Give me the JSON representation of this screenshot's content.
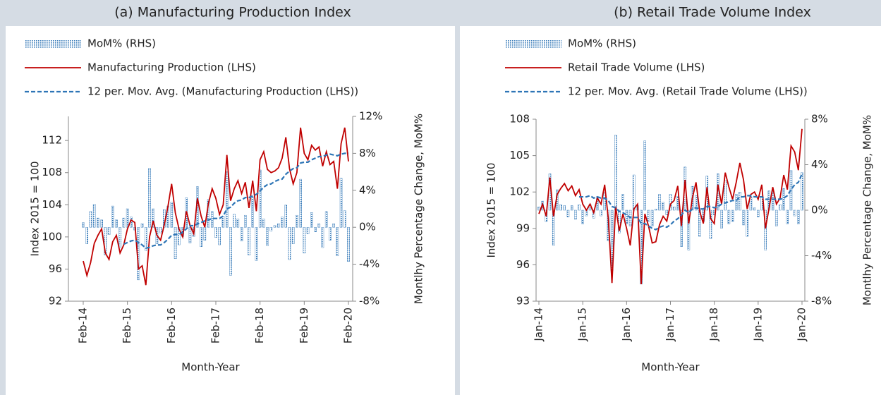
{
  "chart_data": [
    {
      "type": "combo",
      "title": "(a)  Manufacturing Production Index",
      "xlabel": "Month-Year",
      "ylabel": "Index 2015 = 100",
      "y2label": "Montlhy Percentage Change, MoM%",
      "categories": [
        "Feb-14",
        null,
        null,
        null,
        null,
        null,
        null,
        null,
        null,
        null,
        null,
        null,
        "Feb-15",
        null,
        null,
        null,
        null,
        null,
        null,
        null,
        null,
        null,
        null,
        null,
        "Feb-16",
        null,
        null,
        null,
        null,
        null,
        null,
        null,
        null,
        null,
        null,
        null,
        "Feb-17",
        null,
        null,
        null,
        null,
        null,
        null,
        null,
        null,
        null,
        null,
        null,
        "Feb-18",
        null,
        null,
        null,
        null,
        null,
        null,
        null,
        null,
        null,
        null,
        null,
        "Feb-19",
        null,
        null,
        null,
        null,
        null,
        null,
        null,
        null,
        null,
        null,
        null,
        "Feb-20"
      ],
      "ylim": [
        92,
        115
      ],
      "yticks": [
        92,
        96,
        100,
        104,
        108,
        112
      ],
      "y2lim": [
        -8,
        12
      ],
      "y2ticks": [
        {
          "value": -8,
          "label": "-8%"
        },
        {
          "value": -4,
          "label": "-4%"
        },
        {
          "value": 0,
          "label": "0%"
        },
        {
          "value": 4,
          "label": "4%"
        },
        {
          "value": 8,
          "label": "8%"
        },
        {
          "value": 12,
          "label": "12%"
        }
      ],
      "series": [
        {
          "name": "MoM% (RHS)",
          "type": "bar",
          "axis": "y2",
          "color": "#2e75b6",
          "values": [
            0.5,
            -1.8,
            1.7,
            2.5,
            1.0,
            0.8,
            -3.0,
            -0.8,
            2.3,
            0.8,
            -2.2,
            1.0,
            2.0,
            1.1,
            -0.3,
            -5.7,
            0.4,
            -2.5,
            6.4,
            2.0,
            -1.8,
            -0.6,
            1.9,
            2.3,
            2.7,
            -3.4,
            -1.9,
            -1.0,
            3.2,
            -1.7,
            -1.0,
            4.4,
            -2.1,
            -1.4,
            3.0,
            1.7,
            -1.1,
            -1.9,
            1.2,
            6.0,
            -5.2,
            1.4,
            0.9,
            -1.5,
            1.3,
            -3.0,
            3.3,
            -3.6,
            6.2,
            0.9,
            -2.0,
            -0.4,
            0.2,
            0.4,
            1.1,
            2.4,
            -3.5,
            -1.8,
            1.3,
            5.2,
            -2.8,
            -0.7,
            1.6,
            -0.5,
            0.4,
            -2.2,
            1.7,
            -1.4,
            0.4,
            -3.1,
            5.3,
            1.8,
            -3.7
          ]
        },
        {
          "name": "Manufacturing Production (LHS)",
          "type": "line",
          "axis": "y",
          "color": "#c00000",
          "values": [
            97.0,
            95.2,
            96.8,
            99.2,
            100.2,
            101.0,
            98.0,
            97.2,
            99.4,
            100.2,
            98.0,
            99.0,
            101.0,
            102.1,
            101.8,
            96.0,
            96.4,
            94.0,
            100.0,
            102.0,
            100.2,
            99.6,
            101.5,
            103.8,
            106.6,
            103.0,
            101.0,
            100.0,
            103.2,
            101.4,
            100.4,
            104.8,
            102.6,
            101.2,
            104.2,
            106.0,
            104.8,
            102.8,
            104.0,
            110.2,
            104.5,
            106.0,
            107.0,
            105.4,
            106.8,
            103.6,
            107.0,
            103.2,
            109.6,
            110.6,
            108.4,
            108.0,
            108.2,
            108.6,
            109.8,
            112.4,
            108.5,
            106.6,
            108.0,
            113.6,
            110.4,
            109.6,
            111.4,
            110.8,
            111.2,
            108.8,
            110.6,
            109.0,
            109.4,
            106.0,
            111.6,
            113.6,
            109.4
          ]
        },
        {
          "name": "12 per. Mov. Avg. (Manufacturing Production (LHS))",
          "type": "line",
          "dashed": true,
          "axis": "y",
          "color": "#2e75b6",
          "values": [
            null,
            null,
            null,
            null,
            null,
            null,
            null,
            null,
            null,
            null,
            null,
            99.1,
            99.3,
            99.5,
            99.6,
            99.3,
            99.0,
            98.6,
            98.7,
            98.9,
            99.0,
            99.0,
            99.3,
            99.7,
            100.2,
            100.3,
            100.3,
            100.6,
            101.0,
            101.4,
            101.4,
            101.6,
            101.8,
            102.0,
            102.1,
            102.3,
            102.3,
            102.3,
            102.6,
            103.5,
            103.7,
            104.2,
            104.5,
            104.6,
            104.9,
            104.9,
            105.1,
            105.3,
            105.7,
            106.2,
            106.5,
            106.6,
            106.9,
            107.1,
            107.2,
            107.8,
            108.2,
            108.5,
            108.6,
            109.2,
            109.3,
            109.3,
            109.6,
            109.8,
            110.0,
            110.0,
            110.2,
            110.3,
            110.2,
            110.1,
            110.3,
            110.4,
            110.4
          ]
        }
      ]
    },
    {
      "type": "combo",
      "title": "(b)  Retail Trade Volume Index",
      "xlabel": "Month-Year",
      "ylabel": "Index 2015 = 100",
      "y2label": "Montlhy Percentage Change, MoM%",
      "categories": [
        "Jan-14",
        null,
        null,
        null,
        null,
        null,
        null,
        null,
        null,
        null,
        null,
        null,
        "Jan-15",
        null,
        null,
        null,
        null,
        null,
        null,
        null,
        null,
        null,
        null,
        null,
        "Jan-16",
        null,
        null,
        null,
        null,
        null,
        null,
        null,
        null,
        null,
        null,
        null,
        "Jan-17",
        null,
        null,
        null,
        null,
        null,
        null,
        null,
        null,
        null,
        null,
        null,
        "Jan-18",
        null,
        null,
        null,
        null,
        null,
        null,
        null,
        null,
        null,
        null,
        null,
        "Jan-19",
        null,
        null,
        null,
        null,
        null,
        null,
        null,
        null,
        null,
        null,
        null,
        "Jan-20"
      ],
      "ylim": [
        93,
        108
      ],
      "yticks": [
        93,
        96,
        99,
        102,
        105,
        108
      ],
      "y2lim": [
        -8,
        8
      ],
      "y2ticks": [
        {
          "value": -8,
          "label": "-8%"
        },
        {
          "value": -4,
          "label": "-4%"
        },
        {
          "value": 0,
          "label": "0%"
        },
        {
          "value": 4,
          "label": "4%"
        },
        {
          "value": 8,
          "label": "8%"
        }
      ],
      "series": [
        {
          "name": "MoM% (RHS)",
          "type": "bar",
          "axis": "y2",
          "color": "#2e75b6",
          "values": [
            0.3,
            0.8,
            -1.0,
            3.2,
            -3.1,
            1.8,
            0.5,
            0.4,
            -0.6,
            0.4,
            -0.8,
            0.5,
            -1.2,
            -0.5,
            0.5,
            -0.7,
            1.2,
            -0.5,
            1.6,
            -2.7,
            -5.3,
            6.6,
            -2.0,
            1.4,
            -1.2,
            -1.4,
            3.1,
            0.4,
            -6.5,
            6.1,
            -1.0,
            -1.4,
            0.1,
            1.4,
            0.7,
            -0.4,
            1.4,
            0.3,
            1.2,
            -3.2,
            3.8,
            -3.5,
            2.1,
            1.3,
            -2.3,
            -1.0,
            3.0,
            -2.5,
            -0.4,
            3.2,
            -1.6,
            2.6,
            -1.2,
            -1.0,
            1.4,
            1.6,
            -1.3,
            -2.3,
            1.2,
            0.2,
            -0.6,
            1.2,
            -3.5,
            1.7,
            1.7,
            -1.4,
            0.5,
            1.9,
            -1.2,
            3.5,
            -0.5,
            -1.2,
            3.3
          ]
        },
        {
          "name": "Retail Trade Volume (LHS)",
          "type": "line",
          "axis": "y",
          "color": "#c00000",
          "values": [
            100.2,
            101.0,
            100.0,
            103.2,
            100.0,
            101.8,
            102.3,
            102.7,
            102.1,
            102.5,
            101.7,
            102.2,
            101.0,
            100.5,
            101.0,
            100.3,
            101.5,
            101.0,
            102.6,
            99.8,
            94.5,
            100.8,
            98.8,
            100.2,
            99.0,
            97.6,
            100.6,
            101.0,
            94.4,
            100.2,
            99.2,
            97.8,
            97.9,
            99.3,
            100.0,
            99.6,
            101.0,
            101.3,
            102.5,
            99.2,
            103.0,
            99.4,
            101.5,
            102.8,
            100.4,
            99.4,
            102.4,
            99.8,
            99.4,
            102.6,
            101.0,
            103.6,
            102.4,
            101.4,
            102.8,
            104.4,
            103.0,
            100.6,
            101.8,
            102.0,
            101.4,
            102.6,
            99.0,
            100.7,
            102.4,
            101.0,
            101.5,
            103.4,
            102.2,
            105.8,
            105.3,
            103.8,
            107.2
          ]
        },
        {
          "name": "12 per. Mov. Avg. (Retail Trade Volume (LHS))",
          "type": "line",
          "dashed": true,
          "axis": "y",
          "color": "#2e75b6",
          "values": [
            null,
            null,
            null,
            null,
            null,
            null,
            null,
            null,
            null,
            null,
            null,
            101.6,
            101.6,
            101.6,
            101.7,
            101.5,
            101.6,
            101.5,
            101.5,
            101.3,
            100.8,
            100.7,
            100.4,
            100.3,
            100.1,
            99.9,
            99.9,
            99.9,
            99.4,
            99.4,
            99.2,
            99.0,
            98.9,
            99.1,
            99.2,
            99.1,
            99.3,
            99.6,
            99.8,
            100.1,
            100.5,
            100.3,
            100.6,
            100.7,
            100.6,
            100.6,
            100.8,
            100.8,
            100.7,
            100.8,
            101.0,
            101.1,
            101.2,
            101.3,
            101.3,
            101.6,
            101.6,
            101.7,
            101.7,
            101.6,
            101.6,
            101.6,
            101.4,
            101.4,
            101.4,
            101.4,
            101.4,
            101.5,
            101.7,
            102.2,
            102.6,
            102.8,
            103.5
          ]
        }
      ]
    }
  ]
}
